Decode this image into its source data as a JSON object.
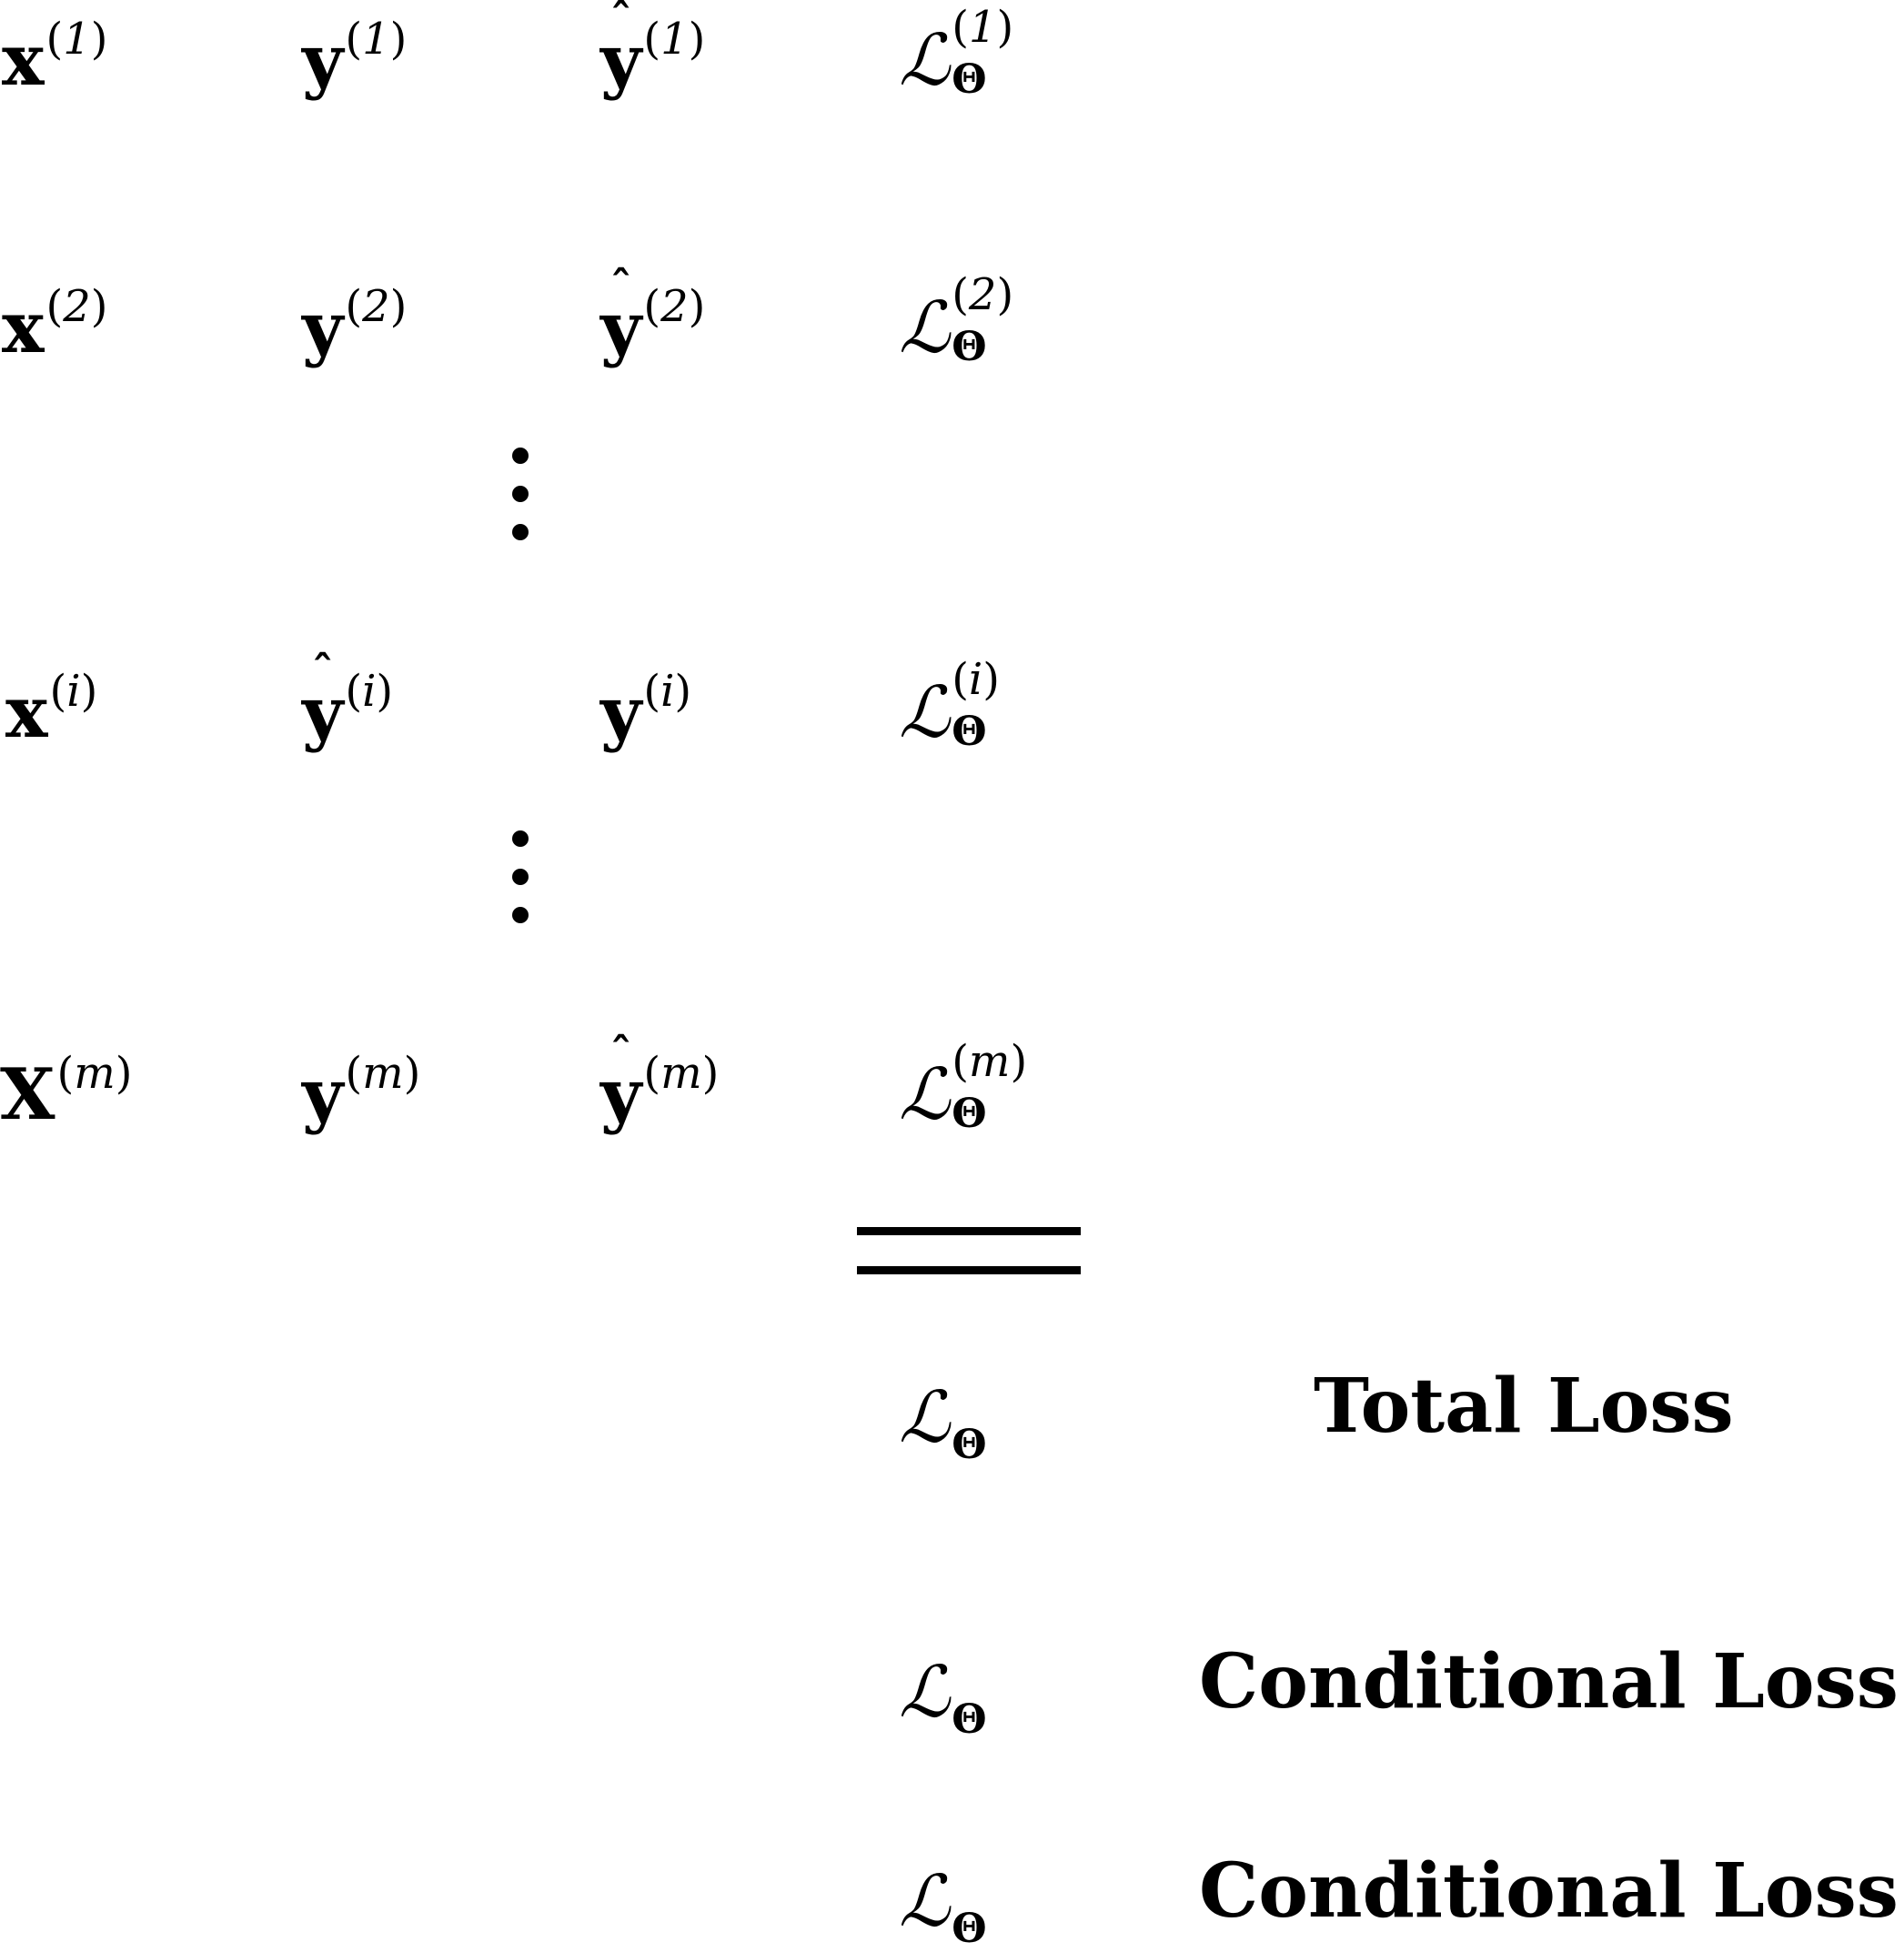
{
  "rows": [
    {
      "x": {
        "base": "x",
        "sup": "1"
      },
      "y": {
        "base": "y",
        "sup": "1",
        "hat": false
      },
      "yhat": {
        "base": "y",
        "sup": "1",
        "hat": true
      },
      "loss": {
        "base": "ℒ",
        "sub": "Θ",
        "sup": "1"
      }
    },
    {
      "x": {
        "base": "x",
        "sup": "2"
      },
      "y": {
        "base": "y",
        "sup": "2",
        "hat": false
      },
      "yhat": {
        "base": "y",
        "sup": "2",
        "hat": true
      },
      "loss": {
        "base": "ℒ",
        "sub": "Θ",
        "sup": "2"
      }
    },
    {
      "x": {
        "base": "x",
        "sup": "i"
      },
      "y": {
        "base": "y",
        "sup": "i",
        "hat": true
      },
      "yhat": {
        "base": "y",
        "sup": "i",
        "hat": false
      },
      "loss": {
        "base": "ℒ",
        "sub": "Θ",
        "sup": "i"
      }
    },
    {
      "x": {
        "base": "X",
        "sup": "m"
      },
      "y": {
        "base": "y",
        "sup": "m",
        "hat": false
      },
      "yhat": {
        "base": "y",
        "sup": "m",
        "hat": true
      },
      "loss": {
        "base": "ℒ",
        "sub": "Θ",
        "sup": "m"
      }
    }
  ],
  "paren_open": "(",
  "paren_close": ")",
  "hat_glyph": "ˆ",
  "summary": [
    {
      "symbol": "ℒ",
      "sub": "Θ",
      "label": "Total Loss"
    },
    {
      "symbol": "ℒ",
      "sub": "Θ",
      "label": "Conditional Loss"
    },
    {
      "symbol": "ℒ",
      "sub": "Θ",
      "label": "Conditional Loss"
    }
  ]
}
